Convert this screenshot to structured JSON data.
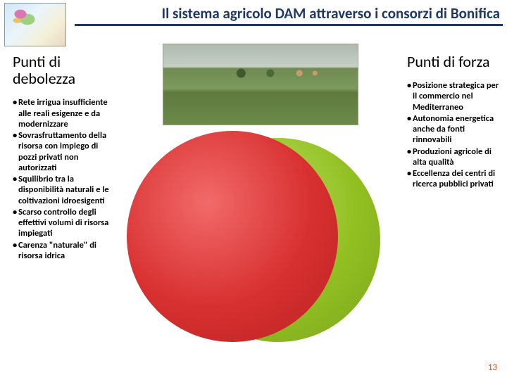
{
  "slide": {
    "title": "Il sistema agricolo DAM attraverso i consorzi di Bonifica",
    "title_color": "#203864",
    "underline_color": "#203864",
    "page_number": "13",
    "page_number_color": "#c05020"
  },
  "left": {
    "heading": "Punti di debolezza",
    "bullets": [
      "Rete irrigua insufficiente alle reali esigenze e da modernizzare",
      "Sovrasfruttamento della risorsa con impiego di pozzi privati non autorizzati",
      "Squilibrio tra la disponibilità naturali e le coltivazioni idroesigenti",
      "Scarso controllo degli effettivi volumi di risorsa impiegati",
      "Carenza \"naturale\" di risorsa idrica"
    ]
  },
  "right": {
    "heading": "Punti di forza",
    "bullets": [
      "Posizione strategica per il commercio nel Mediterraneo",
      "Autonomia energetica anche da fonti rinnovabili",
      "Produzioni agricole di alta qualità",
      "Eccellenza dei centri di ricerca pubblici privati"
    ]
  },
  "venn": {
    "type": "venn",
    "circle_a": {
      "color_start": "#f26a6a",
      "color_mid": "#d83030",
      "color_end": "#b82222",
      "diameter": 300
    },
    "circle_b": {
      "color_start": "#bfe36a",
      "color_mid": "#92c022",
      "color_end": "#7aa51c",
      "diameter": 290
    },
    "background": "#ffffff"
  },
  "map": {
    "border_color": "#8899aa",
    "sea_color": "#cfe8f7",
    "land_color": "#f5f0d8"
  },
  "photo": {
    "sky": "#aeb9b0",
    "field_light": "#7c9a5e",
    "field_dark": "#5e7a3e"
  }
}
